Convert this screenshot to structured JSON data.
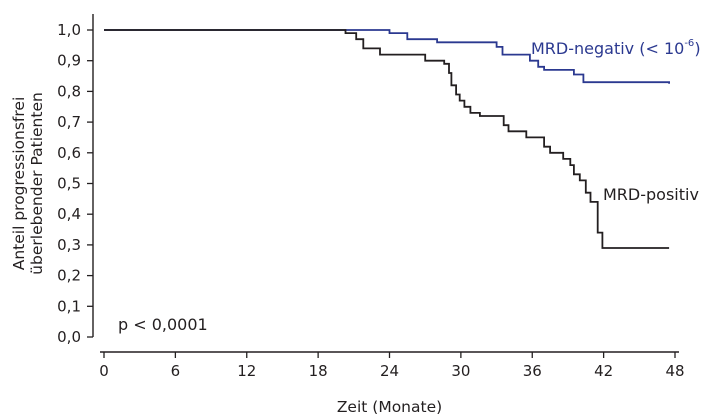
{
  "chart_data": {
    "type": "line",
    "title": "",
    "xlabel": "Zeit (Monate)",
    "ylabel_line1": "Anteil progressionsfrei",
    "ylabel_line2": "überlebender Patienten",
    "xlim": [
      0,
      48
    ],
    "ylim": [
      0,
      1
    ],
    "x_ticks": [
      0,
      6,
      12,
      18,
      24,
      30,
      36,
      42,
      48
    ],
    "y_ticks": [
      0,
      0.1,
      0.2,
      0.3,
      0.4,
      0.5,
      0.6,
      0.7,
      0.8,
      0.9,
      1.0
    ],
    "y_tick_labels": [
      "0,0",
      "0,1",
      "0,2",
      "0,3",
      "0,4",
      "0,5",
      "0,6",
      "0,7",
      "0,8",
      "0,9",
      "1,0"
    ],
    "grid": false,
    "step": true,
    "series": [
      {
        "name": "MRD-negativ (< 10⁻⁶)",
        "label_text": "MRD-negativ (< 10",
        "label_sup": "-6",
        "label_suffix": ")",
        "color": "#2b3990",
        "points": [
          [
            0,
            1.0
          ],
          [
            24,
            0.99
          ],
          [
            25.5,
            0.97
          ],
          [
            28,
            0.96
          ],
          [
            33,
            0.945
          ],
          [
            33.5,
            0.92
          ],
          [
            35.8,
            0.9
          ],
          [
            36.5,
            0.88
          ],
          [
            37,
            0.87
          ],
          [
            39.5,
            0.855
          ],
          [
            40.3,
            0.83
          ],
          [
            47.5,
            0.825
          ]
        ]
      },
      {
        "name": "MRD-positiv",
        "label_text": "MRD-positiv",
        "color": "#231f20",
        "points": [
          [
            0,
            1.0
          ],
          [
            20.3,
            0.99
          ],
          [
            21.2,
            0.97
          ],
          [
            21.8,
            0.94
          ],
          [
            23.2,
            0.92
          ],
          [
            27,
            0.9
          ],
          [
            28.6,
            0.89
          ],
          [
            29,
            0.86
          ],
          [
            29.2,
            0.82
          ],
          [
            29.6,
            0.79
          ],
          [
            29.9,
            0.77
          ],
          [
            30.3,
            0.75
          ],
          [
            30.8,
            0.73
          ],
          [
            31.6,
            0.72
          ],
          [
            33.6,
            0.69
          ],
          [
            34,
            0.67
          ],
          [
            35.5,
            0.65
          ],
          [
            37,
            0.62
          ],
          [
            37.5,
            0.6
          ],
          [
            38.6,
            0.58
          ],
          [
            39.2,
            0.56
          ],
          [
            39.5,
            0.53
          ],
          [
            40,
            0.51
          ],
          [
            40.5,
            0.47
          ],
          [
            40.9,
            0.44
          ],
          [
            41.5,
            0.34
          ],
          [
            41.9,
            0.29
          ],
          [
            47.5,
            0.29
          ]
        ]
      }
    ],
    "annotations": [
      {
        "text": "p < 0,0001"
      }
    ]
  }
}
